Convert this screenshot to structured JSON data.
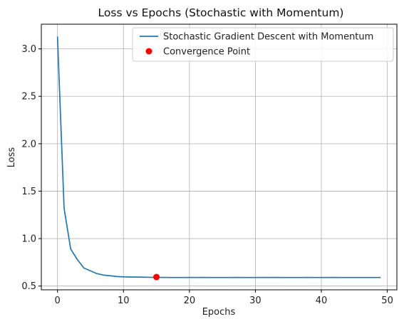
{
  "chart_data": {
    "type": "line",
    "title": "Loss vs Epochs (Stochastic with Momentum)",
    "xlabel": "Epochs",
    "ylabel": "Loss",
    "xlim": [
      -2.45,
      51.45
    ],
    "ylim": [
      0.46,
      3.26
    ],
    "xticks": [
      0,
      10,
      20,
      30,
      40,
      50
    ],
    "yticks": [
      0.5,
      1.0,
      1.5,
      2.0,
      2.5,
      3.0
    ],
    "xtick_labels": [
      "0",
      "10",
      "20",
      "30",
      "40",
      "50"
    ],
    "ytick_labels": [
      "0.5",
      "1.0",
      "1.5",
      "2.0",
      "2.5",
      "3.0"
    ],
    "grid": true,
    "legend_position": "top-right",
    "series": [
      {
        "name": "Stochastic Gradient Descent with Momentum",
        "kind": "line",
        "color": "#1f77b4",
        "x": [
          0,
          1,
          2,
          3,
          4,
          5,
          6,
          7,
          8,
          9,
          10,
          11,
          12,
          13,
          14,
          15,
          16,
          17,
          18,
          19,
          20,
          21,
          22,
          23,
          24,
          25,
          26,
          27,
          28,
          29,
          30,
          31,
          32,
          33,
          34,
          35,
          36,
          37,
          38,
          39,
          40,
          41,
          42,
          43,
          44,
          45,
          46,
          47,
          48,
          49
        ],
        "y": [
          3.13,
          1.32,
          0.89,
          0.78,
          0.69,
          0.66,
          0.63,
          0.615,
          0.608,
          0.6,
          0.597,
          0.595,
          0.594,
          0.593,
          0.592,
          0.591,
          0.591,
          0.59,
          0.59,
          0.59,
          0.591,
          0.59,
          0.591,
          0.59,
          0.59,
          0.59,
          0.59,
          0.591,
          0.59,
          0.59,
          0.59,
          0.591,
          0.59,
          0.591,
          0.59,
          0.59,
          0.59,
          0.59,
          0.591,
          0.59,
          0.59,
          0.59,
          0.591,
          0.59,
          0.59,
          0.59,
          0.59,
          0.59,
          0.59,
          0.59
        ]
      },
      {
        "name": "Convergence Point",
        "kind": "point",
        "color": "#ff0000",
        "x": [
          15
        ],
        "y": [
          0.595
        ]
      }
    ]
  }
}
